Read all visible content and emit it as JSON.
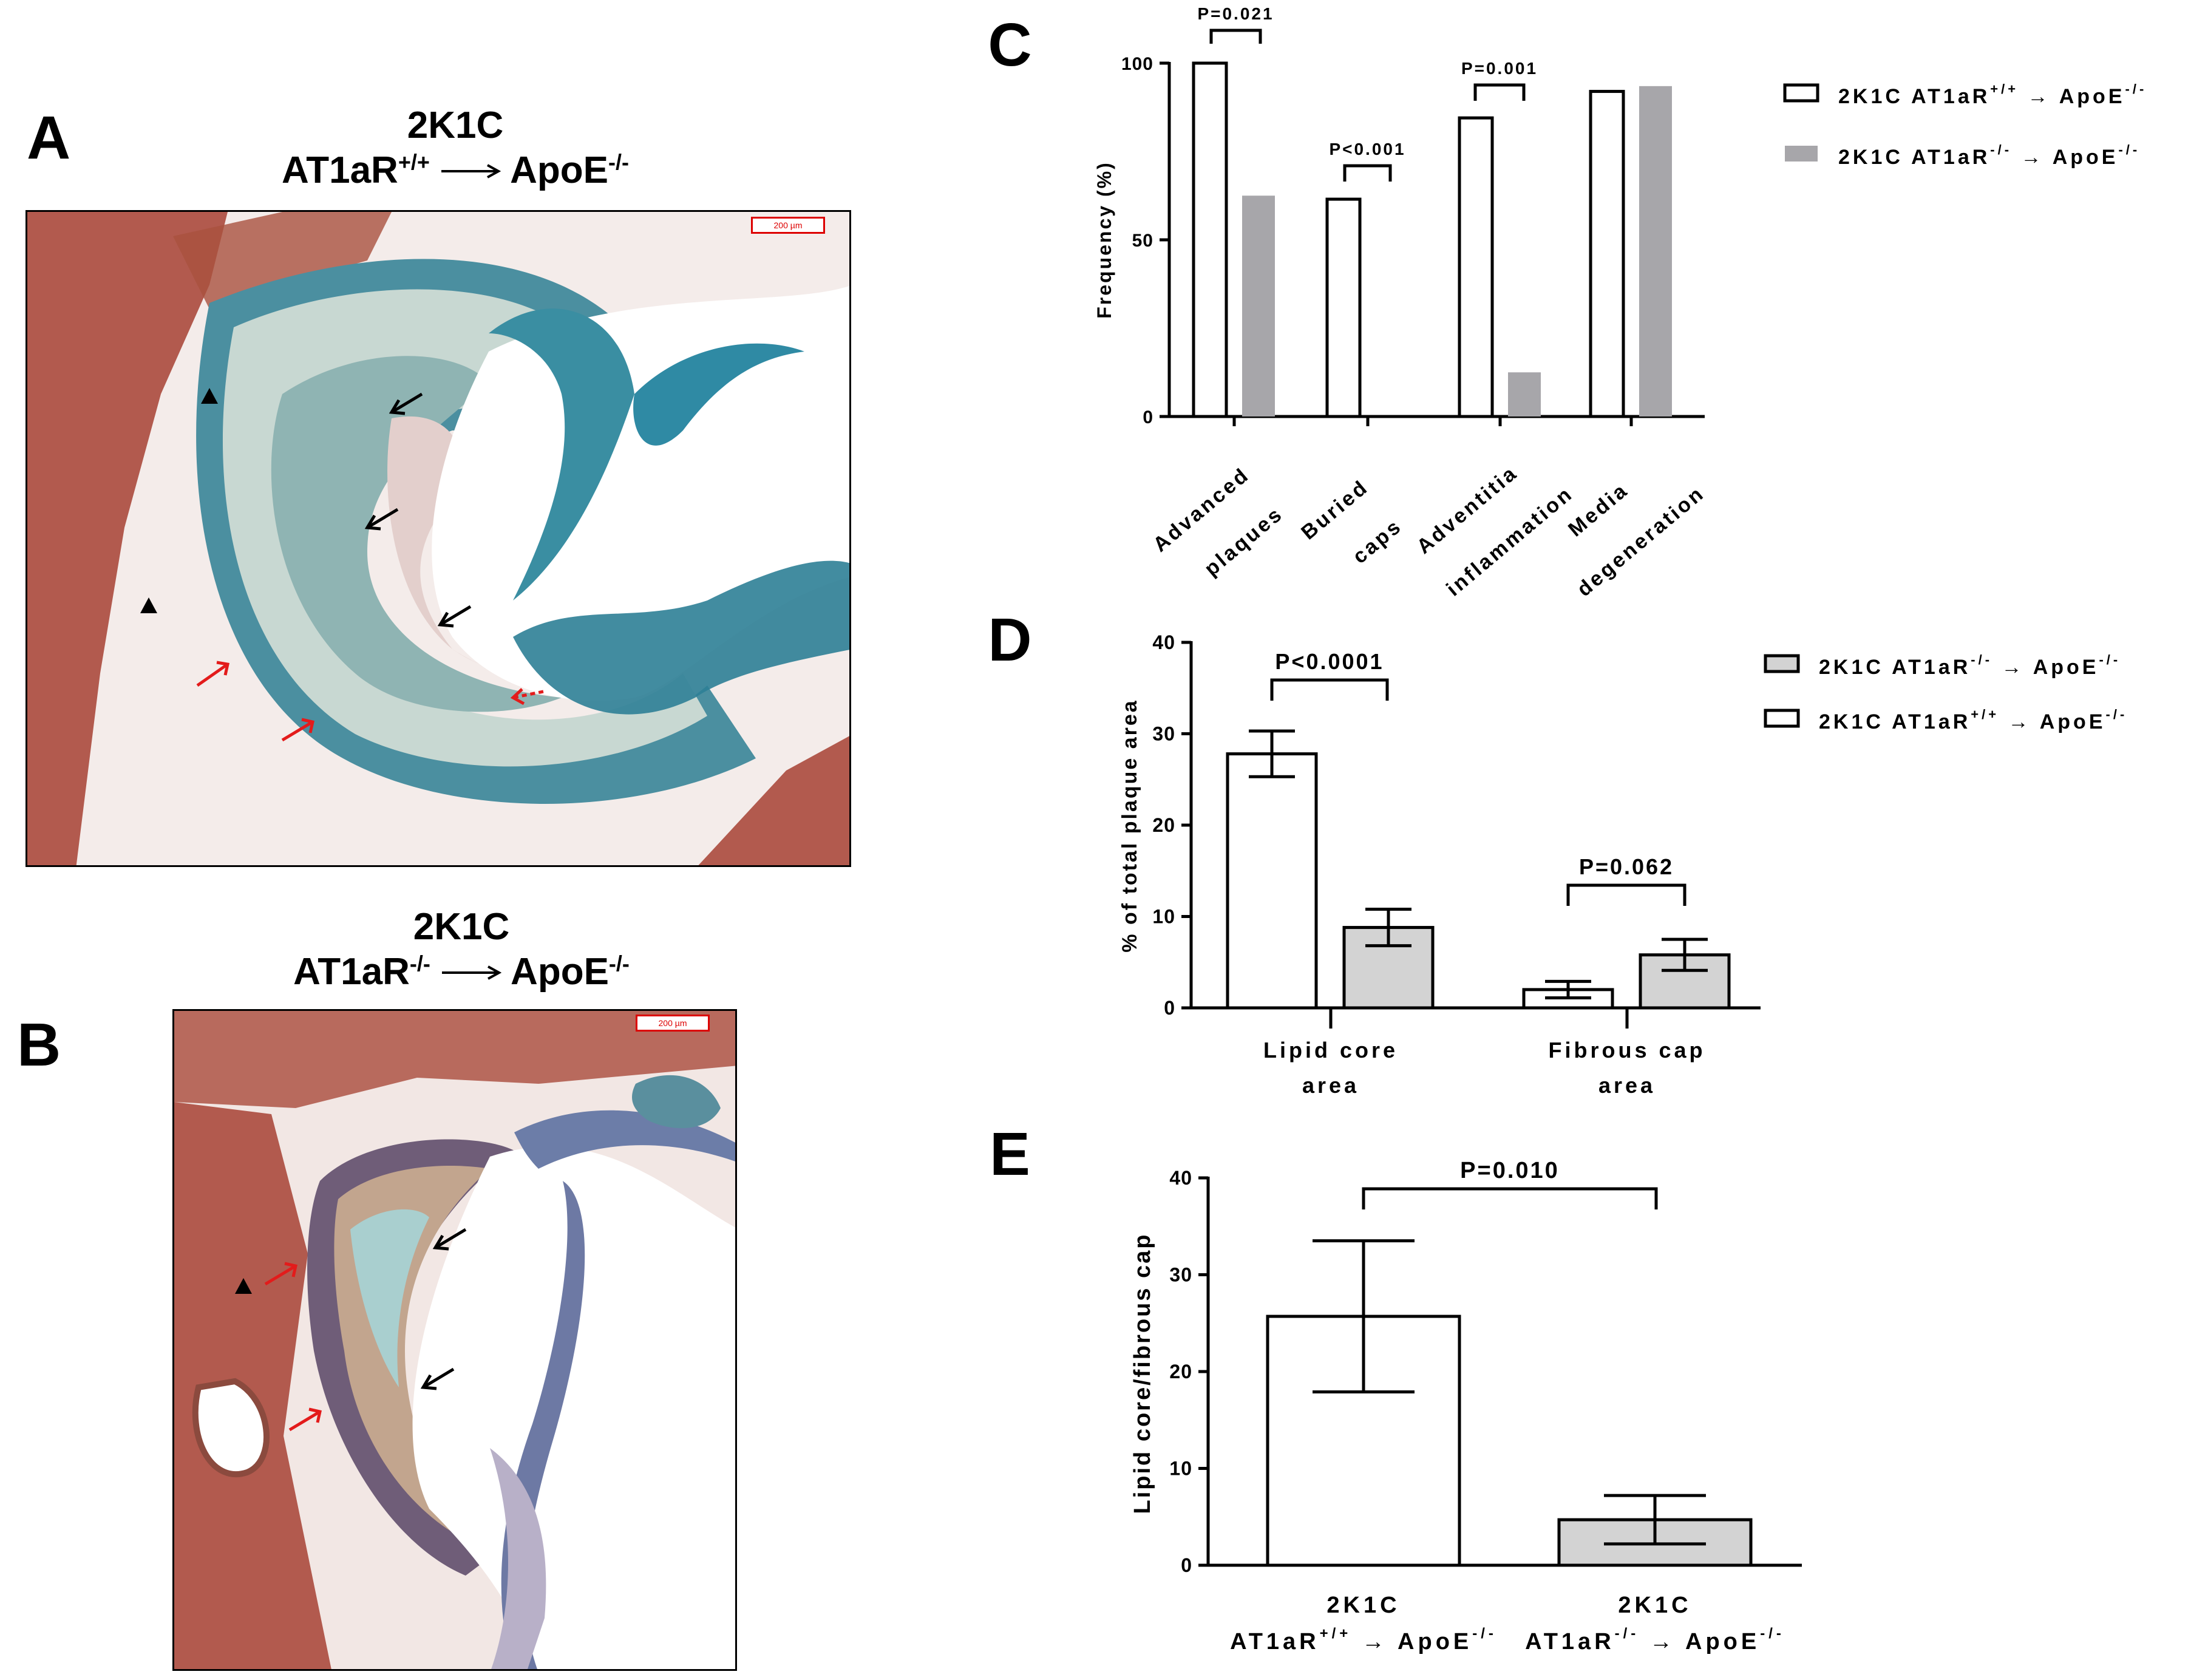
{
  "panel_a": {
    "letter": "A",
    "line1": "2K1C",
    "line2_left": "AT1aR",
    "line2_left_sup": "+/+",
    "line2_right": "ApoE",
    "line2_right_sup": "-/-",
    "scale_label": "200 µm"
  },
  "panel_b": {
    "letter": "B",
    "line1": "2K1C",
    "line2_left": "AT1aR",
    "line2_left_sup": "-/-",
    "line2_right": "ApoE",
    "line2_right_sup": "-/-",
    "scale_label": "200 µm"
  },
  "colors": {
    "gray_fill": "#a7a6aa",
    "light_fill": "#d3d3d3",
    "tissue_red": "#b25a4e",
    "stain_blue": "#3d8ea3",
    "arrow_red": "#e31b1b"
  },
  "chart_data": [
    {
      "panel": "C",
      "type": "bar",
      "ylabel": "Frequency (%)",
      "ylim": [
        0,
        100
      ],
      "yticks": [
        "0",
        "50",
        "100"
      ],
      "categories": [
        {
          "line1": "Advanced",
          "line2": "plaques"
        },
        {
          "line1": "Buried",
          "line2": "caps"
        },
        {
          "line1": "Adventitia",
          "line2": "inflammation"
        },
        {
          "line1": "Media",
          "line2": "degeneration"
        }
      ],
      "series": [
        {
          "name": "2K1C AT1aR",
          "sup": "+/+",
          "arrow": "→",
          "target": "ApoE",
          "target_sup": "-/-",
          "style": "open",
          "values": [
            100,
            61.5,
            84.5,
            92
          ]
        },
        {
          "name": "2K1C AT1aR",
          "sup": "-/-",
          "arrow": "→",
          "target": "ApoE",
          "target_sup": "-/-",
          "style": "gray",
          "values": [
            62.5,
            0,
            12.5,
            93.5
          ]
        }
      ],
      "annotations": [
        "P=0.021",
        "P<0.001",
        "P=0.001"
      ],
      "legend_position": "top-right"
    },
    {
      "panel": "D",
      "type": "bar",
      "ylabel": "% of total plaque area",
      "ylim": [
        0,
        40
      ],
      "yticks": [
        "0",
        "10",
        "20",
        "30",
        "40"
      ],
      "categories": [
        {
          "line1": "Lipid core",
          "line2": "area"
        },
        {
          "line1": "Fibrous cap",
          "line2": "area"
        }
      ],
      "series": [
        {
          "name": "2K1C AT1aR",
          "sup": "+/+",
          "arrow": "→",
          "target": "ApoE",
          "target_sup": "-/-",
          "style": "open",
          "values": [
            27.8,
            2.0
          ],
          "errors": [
            2.5,
            0.9
          ]
        },
        {
          "name": "2K1C AT1aR",
          "sup": "-/-",
          "arrow": "→",
          "target": "ApoE",
          "target_sup": "-/-",
          "style": "light",
          "values": [
            8.8,
            5.8
          ],
          "errors": [
            2.0,
            1.7
          ]
        }
      ],
      "annotations": [
        "P<0.0001",
        "P=0.062"
      ],
      "legend_position": "top-right"
    },
    {
      "panel": "E",
      "type": "bar",
      "ylabel": "Lipid core/fibrous cap",
      "ylim": [
        0,
        40
      ],
      "yticks": [
        "0",
        "10",
        "20",
        "30",
        "40"
      ],
      "categories": [
        {
          "line1": "2K1C",
          "line2": "AT1aR",
          "sup": "+/+",
          "arrow": "→",
          "target": "ApoE",
          "target_sup": "-/-"
        },
        {
          "line1": "2K1C",
          "line2": "AT1aR",
          "sup": "-/-",
          "arrow": "→",
          "target": "ApoE",
          "target_sup": "-/-"
        }
      ],
      "values": [
        25.7,
        4.7
      ],
      "errors": [
        7.8,
        2.5
      ],
      "styles": [
        "open",
        "light"
      ],
      "annotations": [
        "P=0.010"
      ]
    }
  ]
}
